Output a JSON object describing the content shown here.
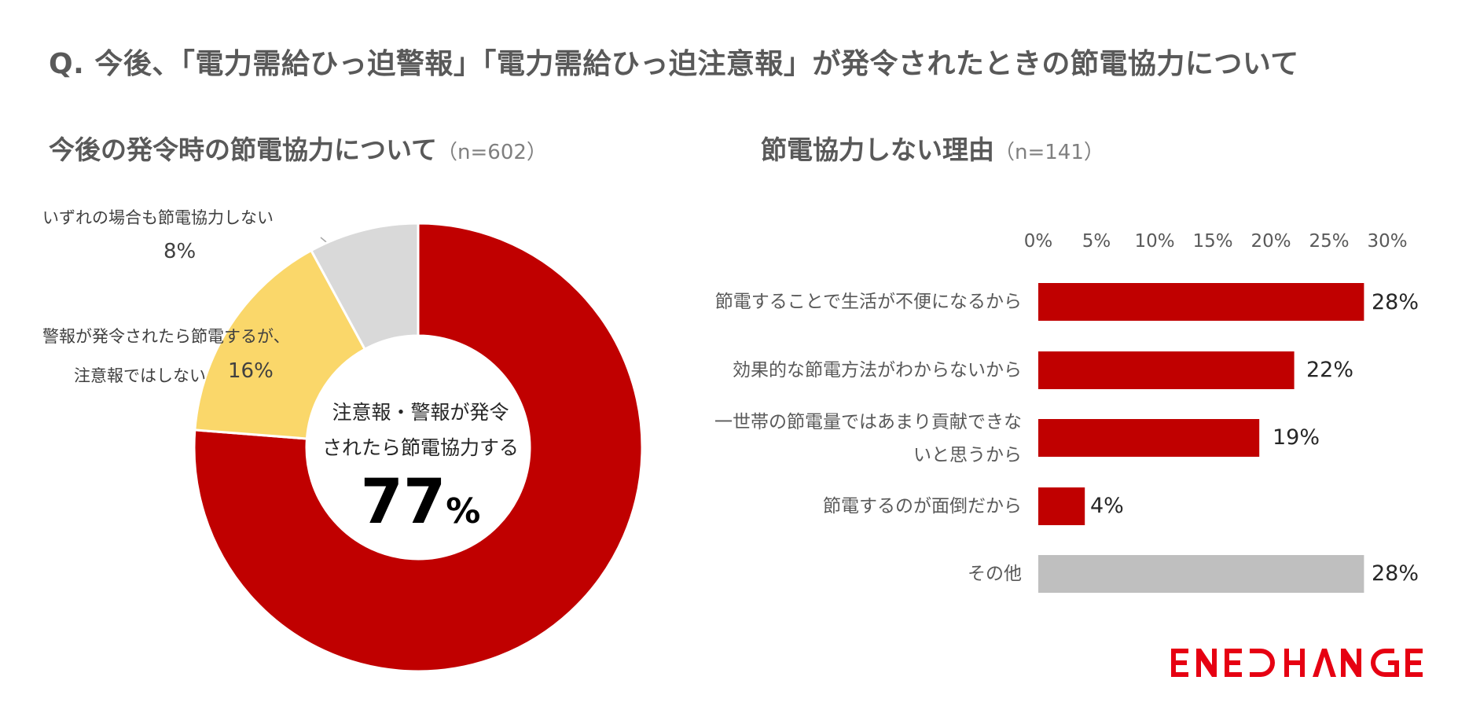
{
  "title": "Q. 今後、「電力需給ひっ迫警報」「電力需給ひっ迫注意報」が発令されたときの節電協力について",
  "donut_chart": {
    "title": "今後の発令時の節電協力について",
    "n": "（n=602）",
    "center_line1": "注意報・警報が発令",
    "center_line2": "されたら節電協力する",
    "center_value": "77",
    "center_unit": "%",
    "label_none_line": "いずれの場合も節電協力しない",
    "label_none_pct": "8%",
    "label_alert_line1": "警報が発令されたら節電するが、",
    "label_alert_line2": "注意報ではしない",
    "label_alert_pct": "16%"
  },
  "bar_chart": {
    "title": "節電協力しない理由",
    "n": "（n=141）",
    "ticks": [
      "0%",
      "5%",
      "10%",
      "15%",
      "20%",
      "25%",
      "30%"
    ],
    "categories": [
      {
        "line1": "節電することで生活が不便になるから",
        "line2": ""
      },
      {
        "line1": "効果的な節電方法がわからないから",
        "line2": ""
      },
      {
        "line1": "一世帯の節電量ではあまり貢献できな",
        "line2": "いと思うから"
      },
      {
        "line1": "節電するのが面倒だから",
        "line2": ""
      },
      {
        "line1": "その他",
        "line2": ""
      }
    ],
    "value_labels": [
      "28%",
      "22%",
      "19%",
      "4%",
      "28%"
    ]
  },
  "logo_text": "ENECHANGE",
  "colors": {
    "red": "#C00000",
    "yellow": "#FAD76A",
    "gray": "#D9D9D9",
    "bar_gray": "#BFBFBF"
  },
  "chart_data": [
    {
      "type": "pie",
      "title": "今後の発令時の節電協力について",
      "categories": [
        "注意報・警報が発令されたら節電協力する",
        "警報が発令されたら節電するが、注意報ではしない",
        "いずれの場合も節電協力しない"
      ],
      "values": [
        77,
        16,
        8
      ],
      "colors": [
        "#C00000",
        "#FAD76A",
        "#D9D9D9"
      ]
    },
    {
      "type": "bar",
      "orientation": "horizontal",
      "title": "節電協力しない理由",
      "categories": [
        "節電することで生活が不便になるから",
        "効果的な節電方法がわからないから",
        "一世帯の節電量ではあまり貢献できないと思うから",
        "節電するのが面倒だから",
        "その他"
      ],
      "values": [
        28,
        22,
        19,
        4,
        28
      ],
      "xlim": [
        0,
        30
      ],
      "colors": [
        "#C00000",
        "#C00000",
        "#C00000",
        "#C00000",
        "#BFBFBF"
      ],
      "grid": false
    }
  ]
}
